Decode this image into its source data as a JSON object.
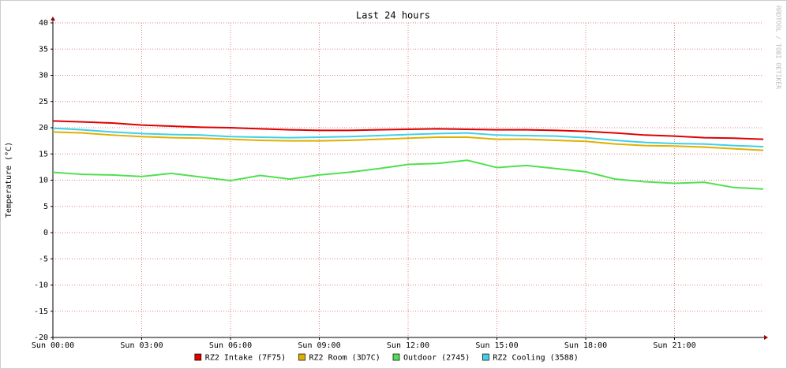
{
  "chart_data": {
    "type": "line",
    "title": "Last 24 hours",
    "y_label": "Temperature (°C)",
    "watermark": "RRDTOOL / TOBI OETIKER",
    "x": [
      0,
      1,
      2,
      3,
      4,
      5,
      6,
      7,
      8,
      9,
      10,
      11,
      12,
      13,
      14,
      15,
      16,
      17,
      18,
      19,
      20,
      21,
      22,
      23,
      24
    ],
    "xlim": [
      0,
      24
    ],
    "xticks": [
      {
        "value": 0,
        "label": "Sun 00:00"
      },
      {
        "value": 3,
        "label": "Sun 03:00"
      },
      {
        "value": 6,
        "label": "Sun 06:00"
      },
      {
        "value": 9,
        "label": "Sun 09:00"
      },
      {
        "value": 12,
        "label": "Sun 12:00"
      },
      {
        "value": 15,
        "label": "Sun 15:00"
      },
      {
        "value": 18,
        "label": "Sun 18:00"
      },
      {
        "value": 21,
        "label": "Sun 21:00"
      }
    ],
    "ylim": [
      -20,
      40
    ],
    "yticks": [
      -20,
      -15,
      -10,
      -5,
      0,
      5,
      10,
      15,
      20,
      25,
      30,
      35,
      40
    ],
    "grid": true,
    "legend": "bottom",
    "series": [
      {
        "name": "RZ2 Intake (7F75)",
        "color": "#e00000",
        "values": [
          21.3,
          21.1,
          20.9,
          20.5,
          20.3,
          20.1,
          20.0,
          19.8,
          19.6,
          19.5,
          19.5,
          19.6,
          19.7,
          19.8,
          19.7,
          19.6,
          19.6,
          19.5,
          19.3,
          19.0,
          18.6,
          18.4,
          18.1,
          18.0,
          17.8
        ]
      },
      {
        "name": "RZ2 Room (3D7C)",
        "color": "#e0b000",
        "values": [
          19.2,
          19.0,
          18.6,
          18.3,
          18.1,
          18.0,
          17.8,
          17.6,
          17.5,
          17.5,
          17.6,
          17.8,
          18.0,
          18.2,
          18.2,
          17.8,
          17.8,
          17.6,
          17.4,
          16.9,
          16.6,
          16.5,
          16.3,
          16.0,
          15.7
        ]
      },
      {
        "name": "Outdoor (2745)",
        "color": "#50e050",
        "values": [
          11.5,
          11.1,
          11.0,
          10.7,
          11.3,
          10.6,
          9.9,
          10.9,
          10.2,
          11.0,
          11.5,
          12.2,
          13.0,
          13.2,
          13.8,
          12.4,
          12.8,
          12.2,
          11.6,
          10.2,
          9.7,
          9.4,
          9.6,
          8.6,
          8.3
        ]
      },
      {
        "name": "RZ2 Cooling (3588)",
        "color": "#40d0e8",
        "values": [
          19.9,
          19.6,
          19.2,
          18.9,
          18.7,
          18.6,
          18.3,
          18.2,
          18.1,
          18.2,
          18.3,
          18.5,
          18.7,
          18.9,
          19.0,
          18.6,
          18.5,
          18.4,
          18.1,
          17.6,
          17.2,
          17.0,
          16.9,
          16.6,
          16.4
        ]
      }
    ]
  }
}
